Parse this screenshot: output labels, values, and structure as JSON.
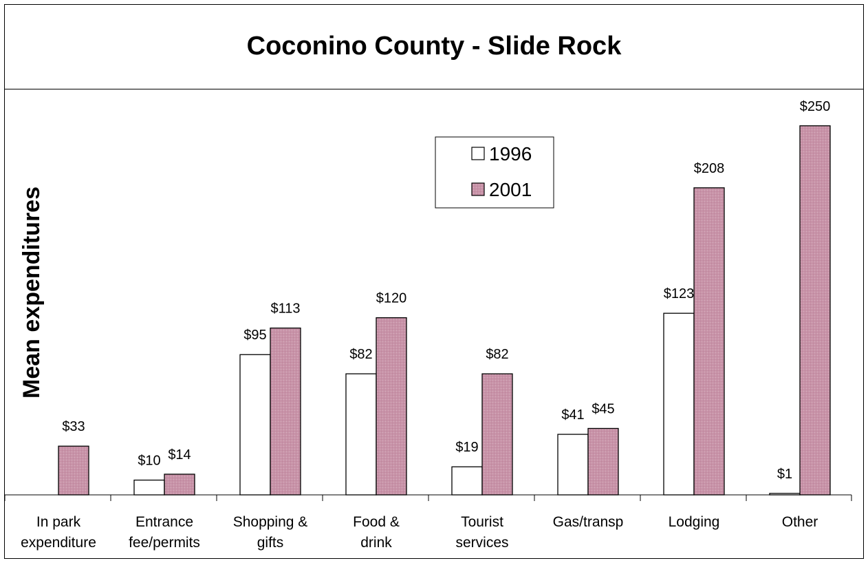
{
  "chart_data": {
    "type": "bar",
    "title": "Coconino County - Slide Rock",
    "ylabel": "Mean expenditures",
    "xlabel": "",
    "ylim": [
      0,
      270
    ],
    "grid": false,
    "legend_position": "top-center",
    "categories": [
      [
        "In park",
        "expenditure"
      ],
      [
        "Entrance",
        "fee/permits"
      ],
      [
        "Shopping &",
        "gifts"
      ],
      [
        "Food &",
        "drink"
      ],
      [
        "Tourist",
        "services"
      ],
      [
        "Gas/transp"
      ],
      [
        "Lodging"
      ],
      [
        "Other"
      ]
    ],
    "series": [
      {
        "name": "1996",
        "color": "#ffffff",
        "values": [
          null,
          10,
          95,
          82,
          19,
          41,
          123,
          1
        ],
        "labels": [
          null,
          "$10",
          "$95",
          "$82",
          "$19",
          "$41",
          "$123",
          "$1"
        ]
      },
      {
        "name": "2001",
        "color": "#c893a8",
        "values": [
          33,
          14,
          113,
          120,
          82,
          45,
          208,
          250
        ],
        "labels": [
          "$33",
          "$14",
          "$113",
          "$120",
          "$82",
          "$45",
          "$208",
          "$250"
        ]
      }
    ]
  }
}
